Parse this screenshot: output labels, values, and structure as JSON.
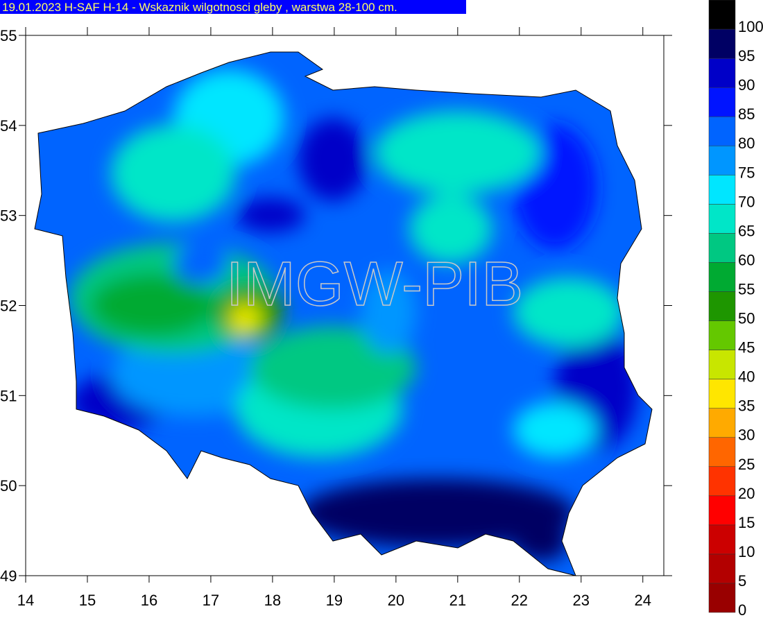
{
  "header": {
    "title": "19.01.2023 H-SAF H-14 - Wskaznik wilgotnosci gleby , warstwa 28-100 cm."
  },
  "map": {
    "watermark": "IMGW-PIB",
    "xlim": [
      14,
      24.34
    ],
    "ylim": [
      49,
      55
    ],
    "xticks": [
      14,
      15,
      16,
      17,
      18,
      19,
      20,
      21,
      22,
      23,
      24
    ],
    "yticks": [
      49,
      50,
      51,
      52,
      53,
      54,
      55
    ]
  },
  "legend": {
    "levels": [
      0,
      5,
      10,
      15,
      20,
      25,
      30,
      35,
      40,
      45,
      50,
      55,
      60,
      65,
      70,
      75,
      80,
      85,
      90,
      95,
      100
    ],
    "colors": [
      "#990000",
      "#b30000",
      "#cc0000",
      "#ff0000",
      "#ff3300",
      "#ff6600",
      "#ffaa00",
      "#ffe600",
      "#c8e600",
      "#64c800",
      "#1e9600",
      "#00aa32",
      "#00c882",
      "#00e6c8",
      "#00e6ff",
      "#0096ff",
      "#0064ff",
      "#0014ff",
      "#0000c8",
      "#000064",
      "#000000"
    ]
  }
}
